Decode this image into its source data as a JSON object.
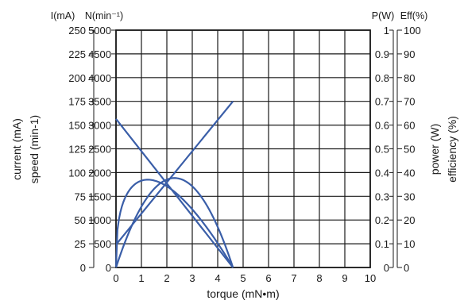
{
  "chart_data": {
    "type": "line",
    "title": "",
    "xlabel": "torque (mN•m)",
    "x_ticks": [
      "0",
      "1",
      "2",
      "3",
      "4",
      "5",
      "6",
      "7",
      "8",
      "9",
      "10"
    ],
    "xlim": [
      0,
      10
    ],
    "axes": {
      "current": {
        "unit_label": "I(mA)",
        "title": "current (mA)",
        "ticks": [
          "250",
          "225",
          "200",
          "175",
          "150",
          "125",
          "100",
          "75",
          "50",
          "25",
          "0"
        ],
        "range": [
          0,
          250
        ]
      },
      "speed": {
        "unit_label": "N(min⁻¹)",
        "title": "speed (min-1)",
        "ticks": [
          "5000",
          "4500",
          "4000",
          "3500",
          "3000",
          "2500",
          "2000",
          "1500",
          "1000",
          "500",
          "0"
        ],
        "range": [
          0,
          5000
        ]
      },
      "power": {
        "unit_label": "P(W)",
        "title": "power (W)",
        "ticks": [
          "1",
          "0.9",
          "0.8",
          "0.7",
          "0.6",
          "0.5",
          "0.4",
          "0.3",
          "0.2",
          "0.1",
          "0"
        ],
        "range": [
          0,
          1
        ]
      },
      "efficiency": {
        "unit_label": "Eff(%)",
        "title": "efficiency (%)",
        "ticks": [
          "100",
          "90",
          "80",
          "70",
          "60",
          "50",
          "40",
          "30",
          "20",
          "10",
          "0"
        ],
        "range": [
          0,
          100
        ]
      }
    },
    "series": [
      {
        "axis": "current",
        "curve": "line",
        "x": [
          0,
          4.6
        ],
        "values": [
          24,
          175
        ]
      },
      {
        "axis": "speed",
        "curve": "line",
        "x": [
          0,
          4.6
        ],
        "values": [
          3130,
          0
        ]
      },
      {
        "axis": "power",
        "curve": "parabola",
        "x": [
          0,
          2.3,
          4.6
        ],
        "values": [
          0,
          0.377,
          0
        ]
      },
      {
        "axis": "efficiency",
        "curve": "skewed",
        "x": [
          0,
          1.25,
          4.6
        ],
        "values": [
          0,
          37,
          0
        ]
      }
    ],
    "grid": true,
    "colors": {
      "series": "#3a5ea8",
      "grid": "#1a1a1a",
      "text": "#1a1a1a"
    }
  }
}
